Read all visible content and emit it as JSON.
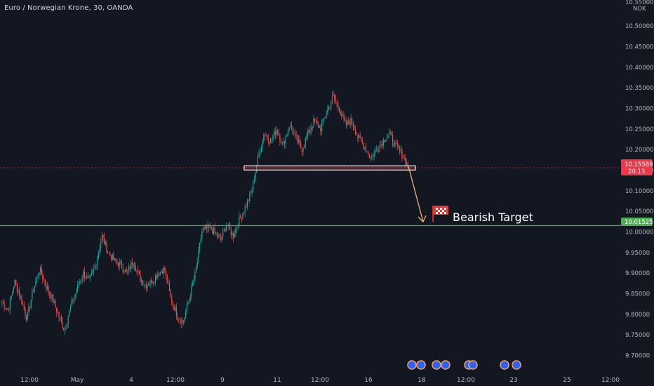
{
  "header": {
    "instrument_line": "Euro / Norwegian Krone, 30, OANDA"
  },
  "price_axis": {
    "currency": "NOK",
    "top_label": "10.55000",
    "ticks": [
      "10.50000",
      "10.45000",
      "10.40000",
      "10.35000",
      "10.30000",
      "10.25000",
      "10.20000",
      "10.15000",
      "10.10000",
      "10.05000",
      "10.00000",
      "9.95000",
      "9.90000",
      "9.85000",
      "9.80000",
      "9.75000",
      "9.70000"
    ],
    "current_price": "10.15589",
    "countdown": "20:15",
    "target_price": "10.01525"
  },
  "time_axis": {
    "labels": [
      "12:00",
      "May",
      "4",
      "12:00",
      "9",
      "11",
      "12:00",
      "16",
      "18",
      "12:00",
      "23",
      "25",
      "12:00"
    ]
  },
  "annotation": {
    "label": "Bearish Target"
  },
  "colors": {
    "background": "#131722",
    "up_candle": "#26a69a",
    "down_candle": "#ef5350",
    "current_price": "#f23645",
    "target_line": "#4caf50",
    "arrow": "#f0b27a",
    "flag": "#e53935"
  },
  "chart_data": {
    "type": "candlestick",
    "title": "Euro / Norwegian Krone, 30, OANDA",
    "ylabel": "NOK",
    "ylim": [
      9.67,
      10.56
    ],
    "horizontal_lines": [
      {
        "name": "current price",
        "value": 10.15589
      },
      {
        "name": "Bearish Target",
        "value": 10.01525
      }
    ],
    "support_zone": [
      10.152,
      10.159
    ],
    "path_anchors": [
      [
        9.83,
        9.81,
        9.88,
        9.84,
        9.79,
        9.86,
        9.91,
        9.87,
        9.84,
        9.8,
        9.76,
        9.82,
        9.86,
        9.9,
        9.88,
        9.92,
        9.99,
        9.95,
        9.93,
        9.92,
        9.9,
        9.93,
        9.89,
        9.87,
        9.88,
        9.9,
        9.91,
        9.84,
        9.8,
        9.78,
        9.84,
        9.9,
        10.0,
        10.01,
        10.0,
        9.98,
        10.02,
        9.99,
        10.03,
        10.06,
        10.1,
        10.18,
        10.24,
        10.22,
        10.25,
        10.21,
        10.26,
        10.23,
        10.2,
        10.24,
        10.27,
        10.25,
        10.29,
        10.33,
        10.3,
        10.26,
        10.27,
        10.23,
        10.21,
        10.18,
        10.2,
        10.22,
        10.24,
        10.21,
        10.19,
        10.16
      ]
    ],
    "candle_count": 350
  }
}
